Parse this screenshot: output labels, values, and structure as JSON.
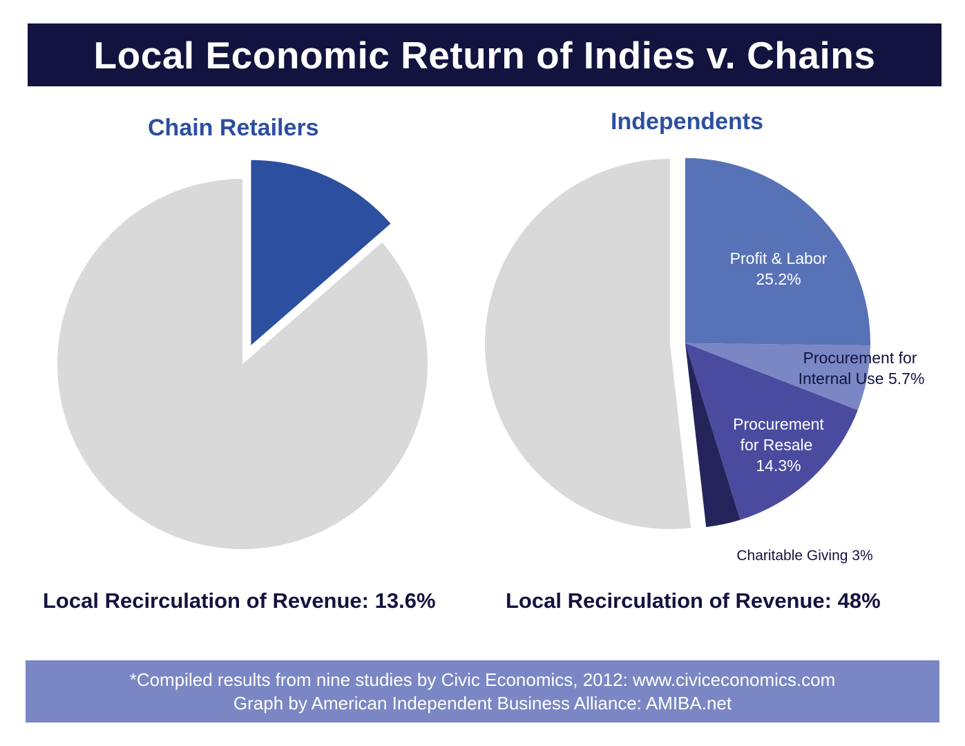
{
  "title": "Local Economic Return of Indies v. Chains",
  "colors": {
    "banner": "#13133f",
    "chart_title": "#2c4fa0",
    "remainder": "#d9d9d9",
    "chain_local": "#2c4fa0",
    "profit_labor": "#5872b7",
    "procurement_internal": "#7a87c4",
    "procurement_resale": "#4a4b9f",
    "charitable": "#25245a",
    "footer_bg": "#7a87c4"
  },
  "chart_data": [
    {
      "type": "pie",
      "title": "Chain Retailers",
      "slices": [
        {
          "label": "",
          "value": 13.6,
          "exploded": true,
          "color": "#2c4fa0"
        },
        {
          "label": "",
          "value": 86.4,
          "exploded": false,
          "color": "#d9d9d9"
        }
      ],
      "summary": "Local Recirculation of Revenue: 13.6%"
    },
    {
      "type": "pie",
      "title": "Independents",
      "slices": [
        {
          "label": "Profit & Labor",
          "label_value": "25.2%",
          "value": 25.2,
          "exploded": true,
          "color": "#5872b7"
        },
        {
          "label": "Procurement for Internal Use",
          "label_value": "5.7%",
          "value": 5.7,
          "exploded": true,
          "color": "#7a87c4"
        },
        {
          "label": "Procurement for Resale",
          "label_value": "14.3%",
          "value": 14.3,
          "exploded": true,
          "color": "#4a4b9f"
        },
        {
          "label": "Charitable Giving",
          "label_value": "3%",
          "value": 3,
          "exploded": true,
          "color": "#25245a"
        },
        {
          "label": "",
          "value": 51.8,
          "exploded": false,
          "color": "#d9d9d9"
        }
      ],
      "labels": {
        "profit_line1": "Profit & Labor",
        "profit_line2": "25.2%",
        "internal_line1": "Procurement for",
        "internal_line2": "Internal Use 5.7%",
        "resale_line1": "Procurement",
        "resale_line2": "for Resale",
        "resale_line3": "14.3%",
        "charitable": "Charitable Giving 3%"
      },
      "summary": "Local Recirculation of Revenue: 48%"
    }
  ],
  "footer": {
    "line1": "*Compiled results from nine studies by Civic Economics, 2012: www.civiceconomics.com",
    "line2": "Graph by American Independent Business Alliance: AMIBA.net"
  }
}
